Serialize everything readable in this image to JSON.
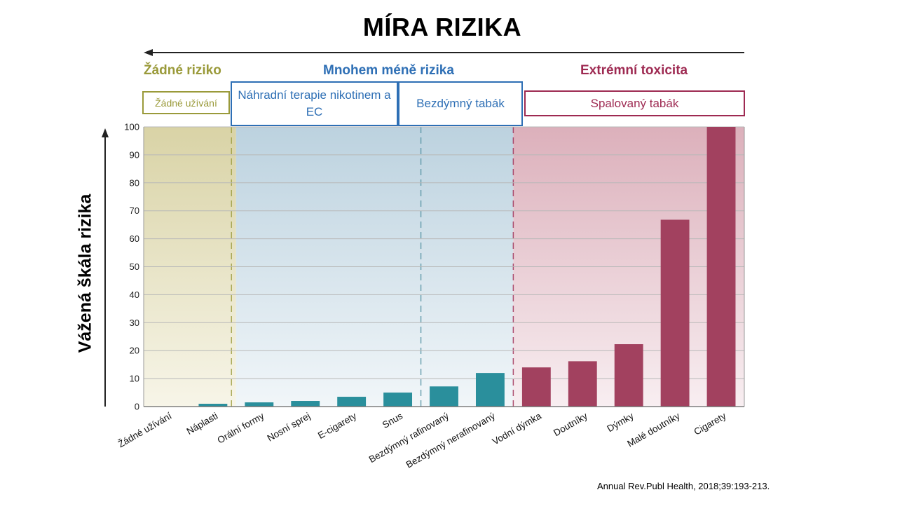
{
  "title": "MÍRA RIZIKA",
  "ylabel": "Vážená škála rizika",
  "source": "Annual Rev.Publ Health, 2018;39:193-213.",
  "zones": {
    "none": {
      "label": "Žádné riziko",
      "box": "Žádné užívání",
      "color": "#9a9a3a"
    },
    "less": {
      "label": "Mnohem méně rizika",
      "box1": "Náhradní terapie nikotinem a EC",
      "box2": "Bezdýmný tabák",
      "color": "#2e6fb5"
    },
    "extreme": {
      "label": "Extrémní toxicita",
      "box": "Spalovaný tabák",
      "color": "#9e2a52"
    }
  },
  "colors": {
    "teal": "#2a8f9c",
    "maroon": "#a2415f"
  },
  "chart_data": {
    "type": "bar",
    "title": "MÍRA RIZIKA",
    "ylabel": "Vážená škála rizika",
    "ylim": [
      0,
      100
    ],
    "yticks": [
      0,
      10,
      20,
      30,
      40,
      50,
      60,
      70,
      80,
      90,
      100
    ],
    "grid": true,
    "categories": [
      "Žádné užívání",
      "Náplasti",
      "Orální formy",
      "Nosní sprej",
      "E-cigarety",
      "Snus",
      "Bezdýmný rafinovaný",
      "Bezdýmný nerafinovaný",
      "Vodní dýmka",
      "Doutníky",
      "Dýmky",
      "Malé doutníky",
      "Cigarety"
    ],
    "values": [
      0,
      1,
      1.5,
      2,
      3.5,
      5,
      7.2,
      12,
      14,
      16.2,
      22.3,
      66.8,
      100
    ],
    "bar_color_groups": [
      "none",
      "teal",
      "teal",
      "teal",
      "teal",
      "teal",
      "teal",
      "teal",
      "maroon",
      "maroon",
      "maroon",
      "maroon",
      "maroon"
    ]
  }
}
